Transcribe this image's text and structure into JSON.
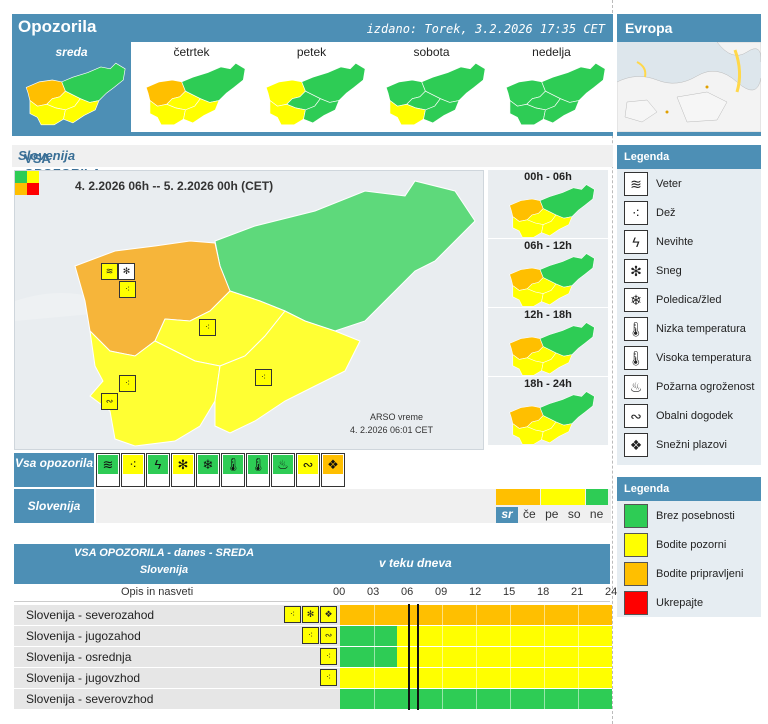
{
  "header": {
    "title": "Opozorila",
    "issued": "izdano: Torek, 3.2.2026 17:35 CET"
  },
  "europe": {
    "title": "Evropa"
  },
  "colors": {
    "green": "#2ecc55",
    "yellow": "#ffff00",
    "orange": "#ffbf00",
    "red": "#ff0000",
    "accent": "#4d8fb5"
  },
  "days": [
    {
      "label": "sreda",
      "selected": true,
      "regions": [
        "orange",
        "yellow",
        "yellow",
        "yellow",
        "green"
      ]
    },
    {
      "label": "četrtek",
      "selected": false,
      "regions": [
        "orange",
        "yellow",
        "yellow",
        "yellow",
        "green"
      ]
    },
    {
      "label": "petek",
      "selected": false,
      "regions": [
        "yellow",
        "yellow",
        "green",
        "green",
        "green"
      ]
    },
    {
      "label": "sobota",
      "selected": false,
      "regions": [
        "green",
        "yellow",
        "green",
        "green",
        "green"
      ]
    },
    {
      "label": "nedelja",
      "selected": false,
      "regions": [
        "green",
        "green",
        "green",
        "green",
        "green"
      ]
    }
  ],
  "section": {
    "title_prefix": "VSA OPOZORILA  -  danes  -  SREDA  -  ",
    "title_region": "Slovenija"
  },
  "map": {
    "period": "4. 2.2026  06h  --  5. 2.2026  00h     (CET)",
    "credit": "ARSO vreme",
    "credit_time": "4. 2.2026  06:01 CET"
  },
  "timemaps": [
    {
      "label": "00h - 06h"
    },
    {
      "label": "06h - 12h"
    },
    {
      "label": "12h - 18h"
    },
    {
      "label": "18h - 24h"
    }
  ],
  "rows": {
    "all_label": "Vsa opozorila",
    "slo_label": "Slovenija"
  },
  "filter_icons": [
    {
      "name": "wind-icon",
      "glyph": "≋",
      "color": "green"
    },
    {
      "name": "rain-icon",
      "glyph": "⁖",
      "color": "yellow"
    },
    {
      "name": "thunder-icon",
      "glyph": "ϟ",
      "color": "green"
    },
    {
      "name": "snow-icon",
      "glyph": "✻",
      "color": "yellow"
    },
    {
      "name": "ice-icon",
      "glyph": "❄",
      "color": "green"
    },
    {
      "name": "low-temp-icon",
      "glyph": "🌡",
      "color": "green"
    },
    {
      "name": "high-temp-icon",
      "glyph": "🌡",
      "color": "green"
    },
    {
      "name": "fire-icon",
      "glyph": "♨",
      "color": "green"
    },
    {
      "name": "coastal-icon",
      "glyph": "∾",
      "color": "yellow"
    },
    {
      "name": "avalanche-icon",
      "glyph": "❖",
      "color": "orange"
    }
  ],
  "day_bar": [
    {
      "label": "sr",
      "color": "orange",
      "selected": true
    },
    {
      "label": "če",
      "color": "orange",
      "selected": false
    },
    {
      "label": "pe",
      "color": "yellow",
      "selected": false
    },
    {
      "label": "so",
      "color": "yellow",
      "selected": false
    },
    {
      "label": "ne",
      "color": "green",
      "selected": false
    }
  ],
  "legend1": {
    "title": "Legenda",
    "items": [
      {
        "label": "Veter",
        "glyph": "≋",
        "icon": "wind-icon"
      },
      {
        "label": "Dež",
        "glyph": "⁖",
        "icon": "rain-icon"
      },
      {
        "label": "Nevihte",
        "glyph": "ϟ",
        "icon": "thunder-icon"
      },
      {
        "label": "Sneg",
        "glyph": "✻",
        "icon": "snow-icon"
      },
      {
        "label": "Poledica/žled",
        "glyph": "❄",
        "icon": "ice-icon"
      },
      {
        "label": "Nizka temperatura",
        "glyph": "🌡",
        "icon": "low-temp-icon"
      },
      {
        "label": "Visoka temperatura",
        "glyph": "🌡",
        "icon": "high-temp-icon"
      },
      {
        "label": "Požarna ogroženost",
        "glyph": "♨",
        "icon": "fire-icon"
      },
      {
        "label": "Obalni dogodek",
        "glyph": "∾",
        "icon": "coastal-icon"
      },
      {
        "label": "Snežni plazovi",
        "glyph": "❖",
        "icon": "avalanche-icon"
      }
    ]
  },
  "legend2": {
    "title": "Legenda",
    "items": [
      {
        "label": "Brez posebnosti",
        "color": "#2ecc55"
      },
      {
        "label": "Bodite pozorni",
        "color": "#ffff00"
      },
      {
        "label": "Bodite pripravljeni",
        "color": "#ffbf00"
      },
      {
        "label": "Ukrepajte",
        "color": "#ff0000"
      }
    ]
  },
  "table": {
    "header_line1": "VSA OPOZORILA - danes - SREDA",
    "header_line2": "Slovenija",
    "timeline_title": "v teku dneva",
    "col_label": "Opis in nasveti",
    "hours": [
      "00",
      "03",
      "06",
      "09",
      "12",
      "15",
      "18",
      "21",
      "24"
    ],
    "now_hours": [
      6.0,
      6.8
    ],
    "rows": [
      {
        "name": "Slovenija - severozahod",
        "icons": [
          "⁖",
          "✻",
          "❖"
        ],
        "segments": [
          {
            "from": 0,
            "to": 24,
            "color": "orange"
          }
        ]
      },
      {
        "name": "Slovenija - jugozahod",
        "icons": [
          "⁖",
          "∾"
        ],
        "segments": [
          {
            "from": 0,
            "to": 5,
            "color": "green"
          },
          {
            "from": 5,
            "to": 24,
            "color": "yellow"
          }
        ]
      },
      {
        "name": "Slovenija - osrednja",
        "icons": [
          "⁖"
        ],
        "segments": [
          {
            "from": 0,
            "to": 5,
            "color": "green"
          },
          {
            "from": 5,
            "to": 24,
            "color": "yellow"
          }
        ]
      },
      {
        "name": "Slovenija - jugovzhod",
        "icons": [
          "⁖"
        ],
        "segments": [
          {
            "from": 0,
            "to": 24,
            "color": "yellow"
          }
        ]
      },
      {
        "name": "Slovenija - severovzhod",
        "icons": [],
        "segments": [
          {
            "from": 0,
            "to": 24,
            "color": "green"
          }
        ]
      }
    ]
  }
}
